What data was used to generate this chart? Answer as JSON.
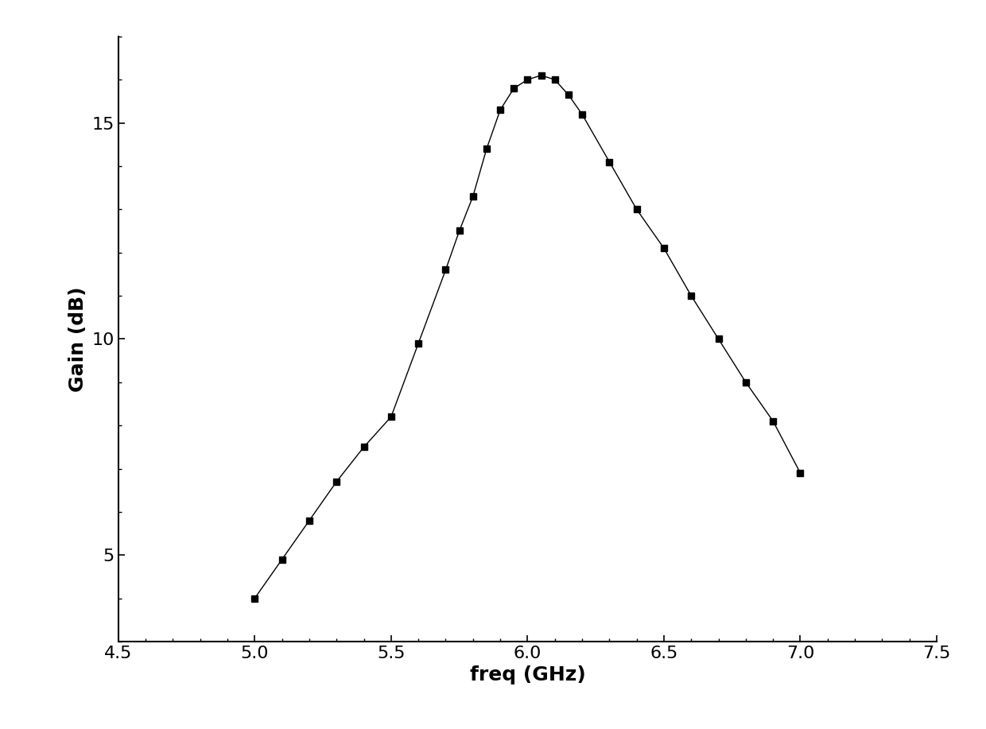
{
  "freq": [
    5.0,
    5.1,
    5.2,
    5.3,
    5.4,
    5.5,
    5.6,
    5.7,
    5.75,
    5.8,
    5.85,
    5.9,
    5.95,
    6.0,
    6.05,
    6.1,
    6.15,
    6.2,
    6.3,
    6.4,
    6.5,
    6.6,
    6.7,
    6.8,
    6.9,
    7.0
  ],
  "gain": [
    4.0,
    4.9,
    5.8,
    6.7,
    7.5,
    8.2,
    9.9,
    11.6,
    12.5,
    13.3,
    14.4,
    15.3,
    15.8,
    16.0,
    16.1,
    16.0,
    15.65,
    15.2,
    14.1,
    13.0,
    12.1,
    11.0,
    10.0,
    9.0,
    8.1,
    6.9
  ],
  "xlabel": "freq (GHz)",
  "ylabel": "Gain (dB)",
  "xlim": [
    4.5,
    7.5
  ],
  "ylim": [
    3.0,
    17.0
  ],
  "xticks": [
    4.5,
    5.0,
    5.5,
    6.0,
    6.5,
    7.0,
    7.5
  ],
  "yticks": [
    5,
    10,
    15
  ],
  "line_color": "#000000",
  "marker": "s",
  "marker_size": 6,
  "marker_color": "#000000",
  "line_width": 1.0,
  "background_color": "#ffffff",
  "xlabel_fontsize": 18,
  "ylabel_fontsize": 18,
  "tick_fontsize": 16
}
